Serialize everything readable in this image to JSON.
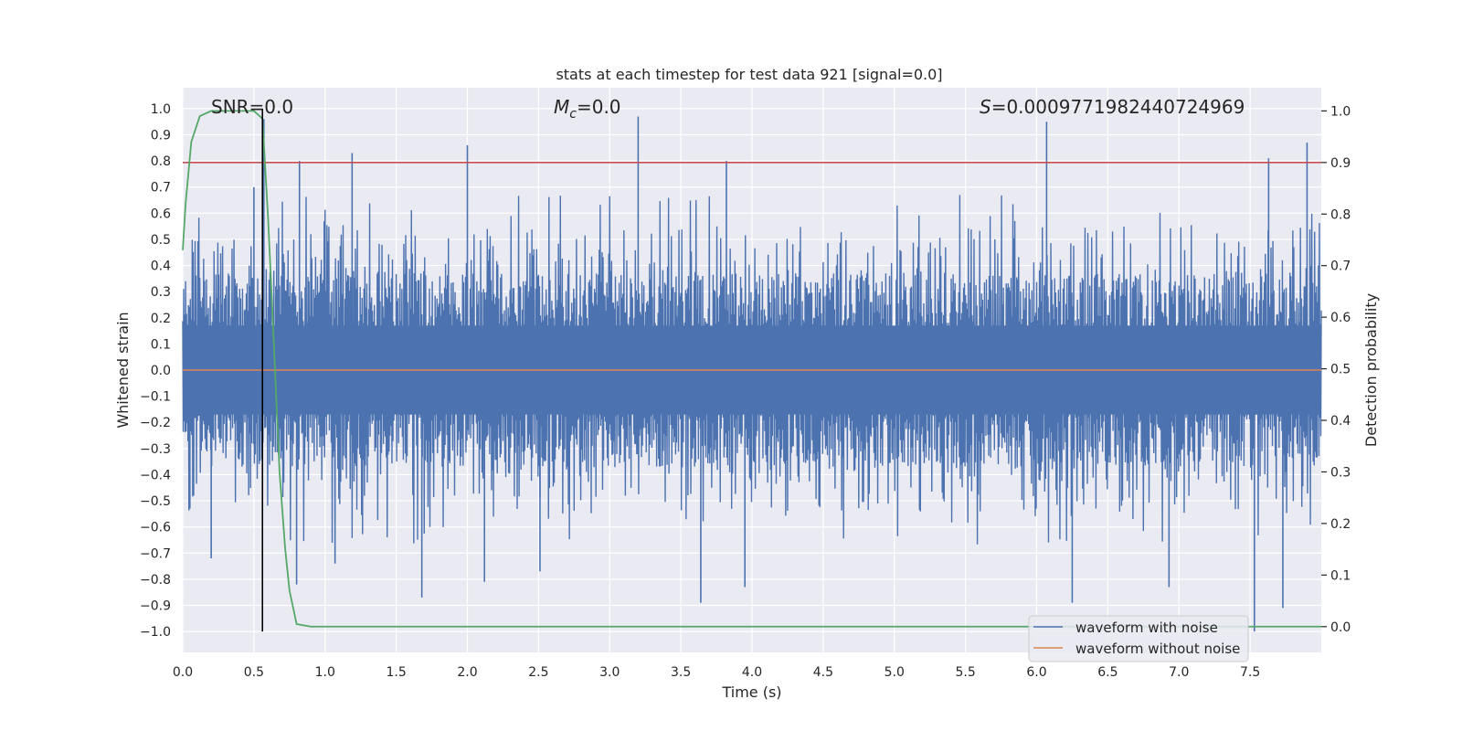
{
  "chart_data": {
    "type": "line",
    "title": "stats at each timestep for test data 921 [signal=0.0]",
    "xlabel": "Time (s)",
    "ylabel_left": "Whitened strain",
    "ylabel_right": "Detection probability",
    "xlim": [
      0.0,
      8.0
    ],
    "ylim_left": [
      -1.08,
      1.08
    ],
    "ylim_right": [
      -0.05,
      1.045
    ],
    "x_ticks": [
      "0.0",
      "0.5",
      "1.0",
      "1.5",
      "2.0",
      "2.5",
      "3.0",
      "3.5",
      "4.0",
      "4.5",
      "5.0",
      "5.5",
      "6.0",
      "6.5",
      "7.0",
      "7.5"
    ],
    "x_tick_values": [
      0.0,
      0.5,
      1.0,
      1.5,
      2.0,
      2.5,
      3.0,
      3.5,
      4.0,
      4.5,
      5.0,
      5.5,
      6.0,
      6.5,
      7.0,
      7.5
    ],
    "y_left_ticks": [
      "1.0",
      "0.9",
      "0.8",
      "0.7",
      "0.6",
      "0.5",
      "0.4",
      "0.3",
      "0.2",
      "0.1",
      "0.0",
      "−0.1",
      "−0.2",
      "−0.3",
      "−0.4",
      "−0.5",
      "−0.6",
      "−0.7",
      "−0.8",
      "−0.9",
      "−1.0"
    ],
    "y_left_tick_values": [
      1.0,
      0.9,
      0.8,
      0.7,
      0.6,
      0.5,
      0.4,
      0.3,
      0.2,
      0.1,
      0.0,
      -0.1,
      -0.2,
      -0.3,
      -0.4,
      -0.5,
      -0.6,
      -0.7,
      -0.8,
      -0.9,
      -1.0
    ],
    "y_right_ticks": [
      "1.0",
      "0.9",
      "0.8",
      "0.7",
      "0.6",
      "0.5",
      "0.4",
      "0.3",
      "0.2",
      "0.1",
      "0.0"
    ],
    "y_right_tick_values": [
      1.0,
      0.9,
      0.8,
      0.7,
      0.6,
      0.5,
      0.4,
      0.3,
      0.2,
      0.1,
      0.0
    ],
    "annotations": {
      "snr": "SNR=0.0",
      "mc_symbol": "M",
      "mc_subscript": "c",
      "mc_value": "=0.0",
      "s_symbol": "S",
      "s_value": "=0.0009771982440724969"
    },
    "legend": {
      "placement": "lower-right",
      "entries": [
        {
          "label": "waveform with noise",
          "color": "#4c72b0"
        },
        {
          "label": "waveform without noise",
          "color": "#dd8452"
        }
      ]
    },
    "series": [
      {
        "name": "waveform with noise",
        "axis": "left",
        "color": "#4c72b0",
        "style": "dense-noise",
        "seed": 921,
        "envelope_abs": 0.55,
        "x_range": [
          0.0,
          8.0
        ],
        "spikes": [
          {
            "x": 0.05,
            "y": -0.53
          },
          {
            "x": 0.2,
            "y": -0.72
          },
          {
            "x": 0.5,
            "y": 0.7
          },
          {
            "x": 0.57,
            "y": 0.96
          },
          {
            "x": 0.8,
            "y": -0.82
          },
          {
            "x": 0.82,
            "y": 0.8
          },
          {
            "x": 1.07,
            "y": -0.74
          },
          {
            "x": 1.19,
            "y": 0.83
          },
          {
            "x": 1.68,
            "y": -0.87
          },
          {
            "x": 2.0,
            "y": 0.86
          },
          {
            "x": 2.12,
            "y": -0.81
          },
          {
            "x": 2.51,
            "y": -0.77
          },
          {
            "x": 3.2,
            "y": 0.97
          },
          {
            "x": 3.64,
            "y": -0.89
          },
          {
            "x": 3.82,
            "y": 0.8
          },
          {
            "x": 3.95,
            "y": -0.83
          },
          {
            "x": 6.07,
            "y": 0.95
          },
          {
            "x": 6.25,
            "y": -0.89
          },
          {
            "x": 6.93,
            "y": -0.83
          },
          {
            "x": 7.53,
            "y": -1.0
          },
          {
            "x": 7.63,
            "y": 0.81
          },
          {
            "x": 7.73,
            "y": -0.91
          },
          {
            "x": 7.9,
            "y": 0.87
          }
        ]
      },
      {
        "name": "waveform without noise",
        "axis": "left",
        "color": "#dd8452",
        "x": [
          0.0,
          8.0
        ],
        "y": [
          0.0,
          0.0
        ]
      },
      {
        "name": "detection probability",
        "axis": "right",
        "color": "#55a868",
        "x": [
          0.0,
          0.02,
          0.06,
          0.12,
          0.2,
          0.3,
          0.42,
          0.5,
          0.56,
          0.6,
          0.64,
          0.68,
          0.72,
          0.75,
          0.8,
          0.9,
          1.2,
          7.5,
          8.0
        ],
        "y": [
          0.73,
          0.82,
          0.94,
          0.99,
          1.0,
          1.0,
          1.0,
          1.0,
          0.985,
          0.79,
          0.55,
          0.3,
          0.15,
          0.07,
          0.005,
          0.0,
          0.0,
          0.0,
          0.0
        ]
      }
    ],
    "reference_lines": [
      {
        "name": "threshold",
        "axis": "right",
        "orientation": "horizontal",
        "value": 0.9,
        "color": "#c44e52"
      },
      {
        "name": "marker",
        "axis": "left",
        "orientation": "vertical",
        "value": 0.56,
        "y_from": -1.0,
        "y_to": 1.0,
        "color": "#000000"
      }
    ]
  }
}
